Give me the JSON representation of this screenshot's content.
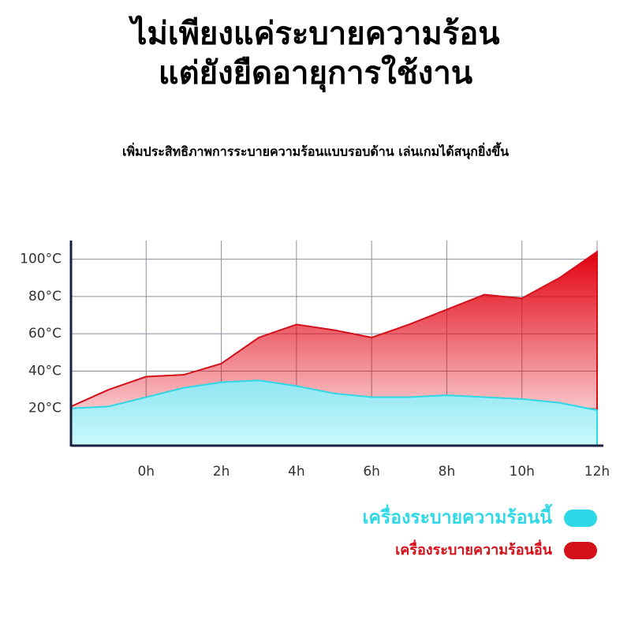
{
  "chart_data": {
    "type": "area",
    "title": [
      "ไม่เพียงแค่ระบายความร้อน",
      "แต่ยังยืดอายุการใช้งาน"
    ],
    "subtitle": "เพิ่มประสิทธิภาพการระบายความร้อนแบบรอบด้าน เล่นเกมได้สนุกยิ่งขึ้น",
    "x": [
      -2,
      -1,
      0,
      1,
      2,
      3,
      4,
      5,
      6,
      7,
      8,
      9,
      10,
      11,
      12
    ],
    "series": [
      {
        "name": "เครื่องระบายความร้อนอื่น",
        "color": "#d4101a",
        "values": [
          21,
          30,
          37,
          38,
          44,
          58,
          65,
          62,
          58,
          65,
          73,
          81,
          79,
          90,
          104
        ]
      },
      {
        "name": "เครื่องระบายความร้อนนี้",
        "color": "#2fd8e6",
        "values": [
          20,
          21,
          26,
          31,
          34,
          35,
          32,
          28,
          26,
          26,
          27,
          26,
          25,
          23,
          19
        ]
      }
    ],
    "xlim": [
      -2,
      12
    ],
    "xticks": [
      {
        "value": 0,
        "label": "0h"
      },
      {
        "value": 2,
        "label": "2h"
      },
      {
        "value": 4,
        "label": "4h"
      },
      {
        "value": 6,
        "label": "6h"
      },
      {
        "value": 8,
        "label": "8h"
      },
      {
        "value": 10,
        "label": "10h"
      },
      {
        "value": 12,
        "label": "12h"
      }
    ],
    "ylim": [
      0,
      110
    ],
    "yticks": [
      {
        "value": 20,
        "label": "20°C"
      },
      {
        "value": 40,
        "label": "40°C"
      },
      {
        "value": 60,
        "label": "60°C"
      },
      {
        "value": 80,
        "label": "80°C"
      },
      {
        "value": 100,
        "label": "100°C"
      }
    ],
    "grid": true
  }
}
